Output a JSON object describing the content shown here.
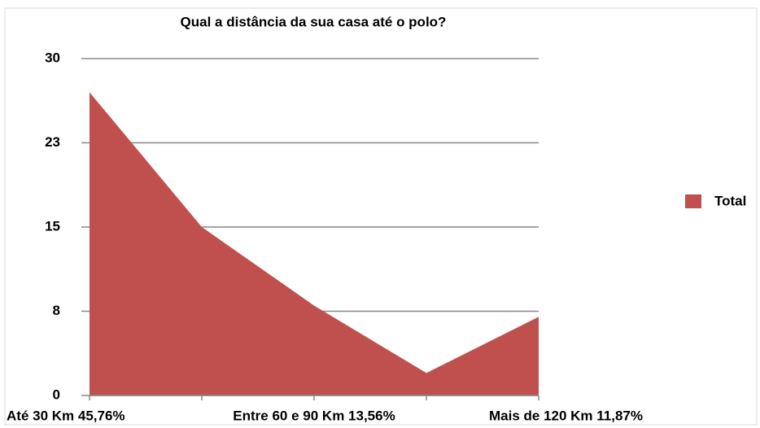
{
  "chart_data": {
    "type": "area",
    "title": "Qual a distância da sua casa até o polo?",
    "categories": [
      "Até 30 Km 45,76%",
      null,
      "Entre 60 e 90 Km 13,56%",
      null,
      "Mais de 120 Km 11,87%"
    ],
    "series": [
      {
        "name": "Total",
        "color": "#c0504d",
        "values": [
          27,
          15,
          8,
          2,
          7
        ]
      }
    ],
    "ylim": [
      0,
      30
    ],
    "yticks": [
      0,
      {
        "value": 7.5,
        "label": "8"
      },
      15,
      {
        "value": 22.5,
        "label": "23"
      },
      30
    ],
    "grid": true,
    "legend": "right"
  }
}
